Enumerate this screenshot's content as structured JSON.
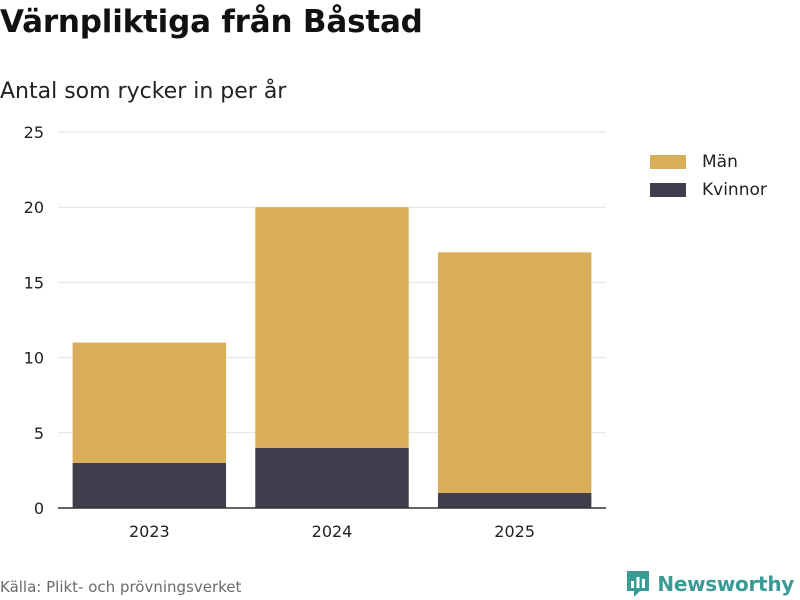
{
  "title": "Värnpliktiga från Båstad",
  "subtitle": "Antal som rycker in per år",
  "source": "Källa: Plikt- och prövningsverket",
  "brand": "Newsworthy",
  "colors": {
    "men": "#d9ad5a",
    "women": "#403e4d",
    "grid": "#e2e2e2",
    "brand": "#3a9a95"
  },
  "chart_data": {
    "type": "bar",
    "stacked": true,
    "categories": [
      "2023",
      "2024",
      "2025"
    ],
    "series": [
      {
        "name": "Kvinnor",
        "values": [
          3,
          4,
          1
        ]
      },
      {
        "name": "Män",
        "values": [
          8,
          16,
          16
        ]
      }
    ],
    "ylim": [
      0,
      25
    ],
    "yticks": [
      0,
      5,
      10,
      15,
      20,
      25
    ],
    "grid": true,
    "legend_position": "top-right"
  },
  "legend": [
    {
      "label": "Män",
      "color_key": "men"
    },
    {
      "label": "Kvinnor",
      "color_key": "women"
    }
  ]
}
